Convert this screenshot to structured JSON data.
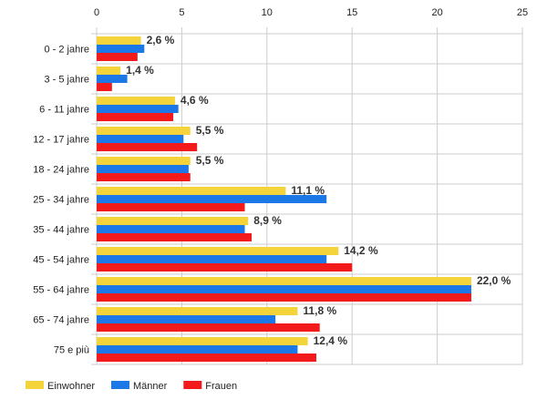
{
  "chart_data": {
    "type": "bar",
    "orientation": "horizontal",
    "title": "",
    "xlabel": "",
    "ylabel": "",
    "xlim": [
      0,
      25
    ],
    "xticks": [
      0,
      5,
      10,
      15,
      20,
      25
    ],
    "grid": true,
    "legend_position": "bottom-left",
    "categories": [
      "0 - 2 jahre",
      "3 - 5 jahre",
      "6 - 11 jahre",
      "12 - 17 jahre",
      "18 - 24 jahre",
      "25 - 34 jahre",
      "35 - 44 jahre",
      "45 - 54 jahre",
      "55 - 64 jahre",
      "65 - 74 jahre",
      "75 e più"
    ],
    "series": [
      {
        "name": "Einwohner",
        "color": "#f5d33a",
        "values": [
          2.6,
          1.4,
          4.6,
          5.5,
          5.5,
          11.1,
          8.9,
          14.2,
          22.0,
          11.8,
          12.4
        ]
      },
      {
        "name": "Männer",
        "color": "#1c78e6",
        "values": [
          2.8,
          1.8,
          4.8,
          5.1,
          5.4,
          13.5,
          8.7,
          13.5,
          22.0,
          10.5,
          11.8
        ]
      },
      {
        "name": "Frauen",
        "color": "#f21a1a",
        "values": [
          2.4,
          0.9,
          4.5,
          5.9,
          5.5,
          8.7,
          9.1,
          15.0,
          22.0,
          13.1,
          12.9
        ]
      }
    ],
    "data_labels": [
      "2,6 %",
      "1,4 %",
      "4,6 %",
      "5,5 %",
      "5,5 %",
      "11,1 %",
      "8,9 %",
      "14,2 %",
      "22,0 %",
      "11,8 %",
      "12,4 %"
    ]
  }
}
